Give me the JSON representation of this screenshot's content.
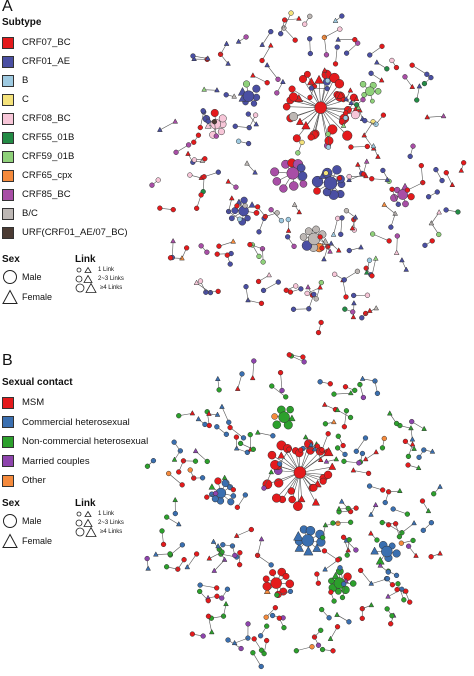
{
  "panel_a": {
    "letter": "A",
    "legend_title": "Subtype",
    "legend": [
      {
        "label": "CRF07_BC",
        "color": "#e41a1c"
      },
      {
        "label": "CRF01_AE",
        "color": "#4a4fa3"
      },
      {
        "label": "B",
        "color": "#9ecae1"
      },
      {
        "label": "C",
        "color": "#f4e27a"
      },
      {
        "label": "CRF08_BC",
        "color": "#f7c6d8"
      },
      {
        "label": "CRF55_01B",
        "color": "#238b45"
      },
      {
        "label": "CRF59_01B",
        "color": "#8fd17a"
      },
      {
        "label": "CRF65_cpx",
        "color": "#f58a3c"
      },
      {
        "label": "CRF85_BC",
        "color": "#a84ea6"
      },
      {
        "label": "B/C",
        "color": "#bdb7b4"
      },
      {
        "label": "URF(CRF01_AE/07_BC)",
        "color": "#4b3b33"
      }
    ],
    "sex_title": "Sex",
    "sex_male": "Male",
    "sex_female": "Female",
    "link_title": "Link",
    "link_items": [
      "1 Link",
      "2~3 Links",
      "≥4 Links"
    ]
  },
  "panel_b": {
    "letter": "B",
    "legend_title": "Sexual contact",
    "legend": [
      {
        "label": "MSM",
        "color": "#e41a1c"
      },
      {
        "label": "Commercial heterosexual",
        "color": "#3a6fb0"
      },
      {
        "label": "Non-commercial heterosexual",
        "color": "#2ca02c"
      },
      {
        "label": "Married couples",
        "color": "#8e44ad"
      },
      {
        "label": "Other",
        "color": "#f58a3c"
      }
    ],
    "sex_title": "Sex",
    "sex_male": "Male",
    "sex_female": "Female",
    "link_title": "Link",
    "link_items": [
      "1 Link",
      "2~3 Links",
      "≥4 Links"
    ]
  }
}
